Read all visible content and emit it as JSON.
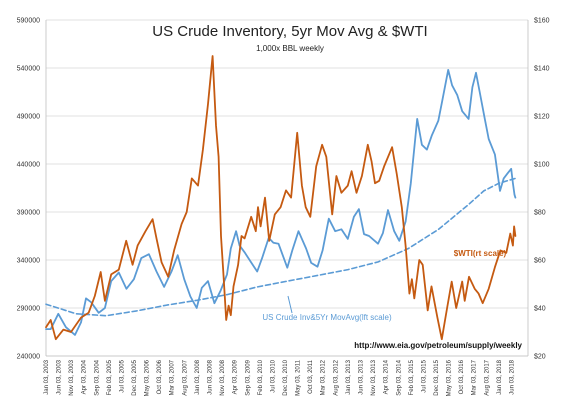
{
  "chart_data": {
    "type": "line",
    "title": "US Crude Inventory, 5yr Mov Avg & $WTI",
    "subtitle": "1,000x BBL weekly",
    "source": "http://www.eia.gov/petroleum/supply/weekly",
    "legend_placement": "inline labels",
    "grid": true,
    "y_left": {
      "range": [
        240000,
        590000
      ],
      "ticks": [
        240000,
        290000,
        340000,
        390000,
        440000,
        490000,
        540000,
        590000
      ]
    },
    "y_right": {
      "range": [
        20,
        160
      ],
      "ticks": [
        "$20",
        "$40",
        "$60",
        "$80",
        "$100",
        "$120",
        "$140",
        "$160"
      ]
    },
    "x_range": [
      "2003-01-03",
      "2018-01-03"
    ],
    "x_tick_labels": [
      "Jan 03, 2003",
      "Jun 03, 2003",
      "Nov 03, 2003",
      "Apr 03, 2004",
      "Sep 03, 2004",
      "Feb 03, 2005",
      "Jul 03, 2005",
      "Dec 03, 2005",
      "May 03, 2006",
      "Oct 03, 2006",
      "Mar 03, 2007",
      "Aug 03, 2007",
      "Jan 03, 2008",
      "Jun 03, 2008",
      "Nov 03, 2008",
      "Apr 03, 2009",
      "Sep 03, 2009",
      "Feb 03, 2010",
      "Jul 03, 2010",
      "Dec 03, 2010",
      "May 03, 2011",
      "Oct 03, 2011",
      "Mar 03, 2012",
      "Aug 03, 2012",
      "Jan 03, 2013",
      "Jun 03, 2013",
      "Nov 03, 2013",
      "Apr 03, 2014",
      "Sep 03, 2014",
      "Feb 03, 2015",
      "Jul 03, 2015",
      "Dec 03, 2015",
      "May 03, 2016",
      "Oct 03, 2016",
      "Mar 03, 2017",
      "Aug 03, 2017",
      "Jan 03, 2018",
      "Jun 03, 2018"
    ],
    "series": [
      {
        "name": "$WTI(rt scale)",
        "axis": "right",
        "color": "#c55a11",
        "style": "solid",
        "points": [
          [
            "2003-01-03",
            32
          ],
          [
            "2003-03-01",
            35
          ],
          [
            "2003-05-01",
            27
          ],
          [
            "2003-08-01",
            31
          ],
          [
            "2003-11-01",
            30
          ],
          [
            "2004-03-01",
            36
          ],
          [
            "2004-06-01",
            38
          ],
          [
            "2004-08-15",
            45
          ],
          [
            "2004-10-25",
            55
          ],
          [
            "2004-12-15",
            43
          ],
          [
            "2005-03-01",
            54
          ],
          [
            "2005-06-01",
            56
          ],
          [
            "2005-08-30",
            68
          ],
          [
            "2005-11-15",
            58
          ],
          [
            "2006-01-15",
            66
          ],
          [
            "2006-04-20",
            72
          ],
          [
            "2006-07-15",
            77
          ],
          [
            "2006-09-01",
            69
          ],
          [
            "2006-11-01",
            59
          ],
          [
            "2007-01-20",
            53
          ],
          [
            "2007-04-01",
            64
          ],
          [
            "2007-07-01",
            75
          ],
          [
            "2007-09-01",
            80
          ],
          [
            "2007-11-01",
            94
          ],
          [
            "2008-01-15",
            91
          ],
          [
            "2008-03-15",
            106
          ],
          [
            "2008-05-15",
            125
          ],
          [
            "2008-07-10",
            145
          ],
          [
            "2008-08-20",
            116
          ],
          [
            "2008-09-20",
            103
          ],
          [
            "2008-10-20",
            70
          ],
          [
            "2008-11-20",
            53
          ],
          [
            "2008-12-22",
            35
          ],
          [
            "2009-01-20",
            41
          ],
          [
            "2009-02-15",
            37
          ],
          [
            "2009-03-20",
            49
          ],
          [
            "2009-05-15",
            58
          ],
          [
            "2009-06-25",
            70
          ],
          [
            "2009-08-01",
            69
          ],
          [
            "2009-10-20",
            78
          ],
          [
            "2009-12-15",
            72
          ],
          [
            "2010-01-10",
            82
          ],
          [
            "2010-02-10",
            74
          ],
          [
            "2010-04-05",
            86
          ],
          [
            "2010-05-25",
            68
          ],
          [
            "2010-08-01",
            79
          ],
          [
            "2010-10-10",
            82
          ],
          [
            "2010-12-15",
            89
          ],
          [
            "2011-02-15",
            86
          ],
          [
            "2011-04-29",
            113
          ],
          [
            "2011-06-25",
            91
          ],
          [
            "2011-08-10",
            82
          ],
          [
            "2011-10-05",
            78
          ],
          [
            "2011-12-15",
            99
          ],
          [
            "2012-02-25",
            108
          ],
          [
            "2012-04-15",
            103
          ],
          [
            "2012-06-25",
            79
          ],
          [
            "2012-08-15",
            95
          ],
          [
            "2012-10-15",
            88
          ],
          [
            "2012-12-31",
            91
          ],
          [
            "2013-02-15",
            97
          ],
          [
            "2013-04-15",
            88
          ],
          [
            "2013-06-20",
            95
          ],
          [
            "2013-08-30",
            108
          ],
          [
            "2013-10-15",
            101
          ],
          [
            "2013-11-25",
            92
          ],
          [
            "2014-01-15",
            93
          ],
          [
            "2014-03-15",
            99
          ],
          [
            "2014-06-20",
            107
          ],
          [
            "2014-08-15",
            96
          ],
          [
            "2014-10-15",
            82
          ],
          [
            "2014-11-30",
            66
          ],
          [
            "2015-01-15",
            46
          ],
          [
            "2015-02-15",
            52
          ],
          [
            "2015-03-15",
            44
          ],
          [
            "2015-05-15",
            60
          ],
          [
            "2015-06-25",
            58
          ],
          [
            "2015-08-25",
            39
          ],
          [
            "2015-10-10",
            49
          ],
          [
            "2015-12-20",
            36
          ],
          [
            "2016-02-11",
            27
          ],
          [
            "2016-04-15",
            40
          ],
          [
            "2016-06-10",
            51
          ],
          [
            "2016-08-03",
            40
          ],
          [
            "2016-10-15",
            51
          ],
          [
            "2016-11-14",
            43
          ],
          [
            "2017-01-05",
            53
          ],
          [
            "2017-03-15",
            48
          ],
          [
            "2017-05-01",
            46
          ],
          [
            "2017-06-20",
            42
          ],
          [
            "2017-09-01",
            48
          ],
          [
            "2017-11-15",
            57
          ],
          [
            "2018-01-20",
            64
          ],
          [
            "2018-04-01",
            63
          ],
          [
            "2018-05-20",
            71
          ],
          [
            "2018-06-20",
            66
          ],
          [
            "2018-07-05",
            74
          ],
          [
            "2018-07-20",
            70
          ]
        ]
      },
      {
        "name": "US Crude Inv&5Yr MovAvg(lft scale)",
        "axis": "left",
        "color": "#5b9bd5",
        "style": "solid",
        "points": [
          [
            "2003-01-03",
            268000
          ],
          [
            "2003-03-01",
            268000
          ],
          [
            "2003-06-01",
            284000
          ],
          [
            "2003-09-01",
            270000
          ],
          [
            "2003-12-20",
            262000
          ],
          [
            "2004-03-01",
            275000
          ],
          [
            "2004-05-01",
            300000
          ],
          [
            "2004-07-01",
            296000
          ],
          [
            "2004-10-01",
            285000
          ],
          [
            "2004-12-15",
            290000
          ],
          [
            "2005-03-01",
            318000
          ],
          [
            "2005-06-01",
            327000
          ],
          [
            "2005-09-01",
            310000
          ],
          [
            "2005-12-01",
            320000
          ],
          [
            "2006-03-01",
            342000
          ],
          [
            "2006-06-01",
            346000
          ],
          [
            "2006-09-01",
            328000
          ],
          [
            "2006-12-01",
            312000
          ],
          [
            "2007-03-01",
            328000
          ],
          [
            "2007-05-15",
            345000
          ],
          [
            "2007-08-01",
            320000
          ],
          [
            "2007-10-15",
            302000
          ],
          [
            "2007-12-31",
            290000
          ],
          [
            "2008-03-01",
            311000
          ],
          [
            "2008-05-15",
            318000
          ],
          [
            "2008-08-01",
            295000
          ],
          [
            "2008-10-15",
            308000
          ],
          [
            "2008-12-31",
            325000
          ],
          [
            "2009-02-15",
            352000
          ],
          [
            "2009-04-20",
            370000
          ],
          [
            "2009-06-01",
            355000
          ],
          [
            "2009-08-01",
            348000
          ],
          [
            "2009-10-15",
            338000
          ],
          [
            "2009-12-31",
            328000
          ],
          [
            "2010-03-01",
            342000
          ],
          [
            "2010-05-20",
            363000
          ],
          [
            "2010-07-15",
            358000
          ],
          [
            "2010-09-15",
            357000
          ],
          [
            "2010-12-31",
            332000
          ],
          [
            "2011-03-01",
            350000
          ],
          [
            "2011-05-15",
            370000
          ],
          [
            "2011-08-15",
            352000
          ],
          [
            "2011-10-15",
            337000
          ],
          [
            "2011-12-31",
            333000
          ],
          [
            "2012-03-01",
            350000
          ],
          [
            "2012-05-15",
            383000
          ],
          [
            "2012-08-01",
            370000
          ],
          [
            "2012-10-15",
            372000
          ],
          [
            "2012-12-31",
            362000
          ],
          [
            "2013-03-15",
            385000
          ],
          [
            "2013-05-15",
            393000
          ],
          [
            "2013-07-15",
            367000
          ],
          [
            "2013-09-15",
            365000
          ],
          [
            "2013-12-31",
            357000
          ],
          [
            "2014-03-01",
            368000
          ],
          [
            "2014-05-01",
            392000
          ],
          [
            "2014-07-15",
            370000
          ],
          [
            "2014-09-15",
            360000
          ],
          [
            "2014-11-30",
            380000
          ],
          [
            "2015-02-01",
            420000
          ],
          [
            "2015-04-20",
            487000
          ],
          [
            "2015-06-15",
            460000
          ],
          [
            "2015-08-15",
            455000
          ],
          [
            "2015-10-15",
            470000
          ],
          [
            "2015-12-31",
            485000
          ],
          [
            "2016-02-15",
            505000
          ],
          [
            "2016-04-29",
            538000
          ],
          [
            "2016-06-15",
            522000
          ],
          [
            "2016-08-15",
            512000
          ],
          [
            "2016-10-15",
            495000
          ],
          [
            "2016-12-31",
            487000
          ],
          [
            "2017-02-15",
            520000
          ],
          [
            "2017-03-31",
            535000
          ],
          [
            "2017-05-15",
            515000
          ],
          [
            "2017-07-15",
            487000
          ],
          [
            "2017-09-01",
            466000
          ],
          [
            "2017-11-15",
            450000
          ],
          [
            "2018-01-15",
            412000
          ],
          [
            "2018-03-01",
            425000
          ],
          [
            "2018-04-15",
            430000
          ],
          [
            "2018-05-30",
            435000
          ],
          [
            "2018-06-20",
            420000
          ],
          [
            "2018-07-10",
            408000
          ],
          [
            "2018-07-20",
            405000
          ]
        ]
      },
      {
        "name": "5yr Mov Avg",
        "axis": "left",
        "color": "#5b9bd5",
        "style": "dashed",
        "points": [
          [
            "2003-01-03",
            294000
          ],
          [
            "2004-01-03",
            284000
          ],
          [
            "2005-01-03",
            282000
          ],
          [
            "2006-01-03",
            287000
          ],
          [
            "2007-01-03",
            293000
          ],
          [
            "2008-01-03",
            298000
          ],
          [
            "2009-01-03",
            304000
          ],
          [
            "2010-01-03",
            312000
          ],
          [
            "2011-01-03",
            318000
          ],
          [
            "2012-01-03",
            324000
          ],
          [
            "2013-01-03",
            330000
          ],
          [
            "2014-01-03",
            338000
          ],
          [
            "2015-01-03",
            352000
          ],
          [
            "2016-01-03",
            372000
          ],
          [
            "2017-01-03",
            398000
          ],
          [
            "2017-07-03",
            412000
          ],
          [
            "2018-01-03",
            420000
          ],
          [
            "2018-07-20",
            425000
          ]
        ]
      }
    ]
  }
}
